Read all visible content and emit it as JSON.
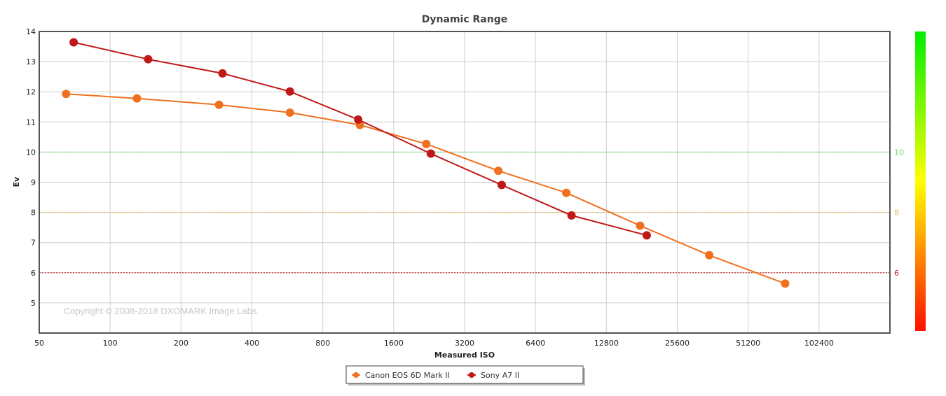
{
  "chart_data": {
    "type": "line",
    "title": "Dynamic Range",
    "xlabel": "Measured ISO",
    "ylabel": "Ev",
    "x_scale": "log2",
    "xlim": [
      50,
      204800
    ],
    "ylim": [
      4,
      14
    ],
    "x_ticks": [
      "50",
      "100",
      "200",
      "400",
      "800",
      "1600",
      "3200",
      "6400",
      "12800",
      "25600",
      "51200",
      "102400"
    ],
    "y_ticks": [
      "5",
      "6",
      "7",
      "8",
      "9",
      "10",
      "11",
      "12",
      "13",
      "14"
    ],
    "grid": true,
    "legend_position": "bottom-center",
    "reference_lines": [
      {
        "y": 10,
        "label": "10",
        "color": "#66dd66"
      },
      {
        "y": 8,
        "label": "8",
        "color": "#e0c060"
      },
      {
        "y": 6,
        "label": "6",
        "color": "#cc2222"
      }
    ],
    "series": [
      {
        "name": "Canon EOS 6D Mark II",
        "color": "#f07020",
        "x": [
          65,
          130,
          290,
          580,
          1150,
          2200,
          4450,
          8650,
          17800,
          35000,
          73500
        ],
        "y": [
          11.93,
          11.78,
          11.57,
          11.31,
          10.9,
          10.27,
          9.38,
          8.65,
          7.56,
          6.58,
          5.64
        ]
      },
      {
        "name": "Sony A7 II",
        "color": "#c01818",
        "x": [
          70,
          145,
          300,
          580,
          1130,
          2300,
          4600,
          9100,
          19000
        ],
        "y": [
          13.64,
          13.08,
          12.61,
          12.01,
          11.08,
          9.95,
          8.91,
          7.9,
          7.24
        ]
      }
    ],
    "color_scale": {
      "top": "#00ee00",
      "middle": "#ffff00",
      "bottom": "#ff1100"
    },
    "watermark": "Copyright © 2008-2018 DXOMARK Image Labs"
  }
}
